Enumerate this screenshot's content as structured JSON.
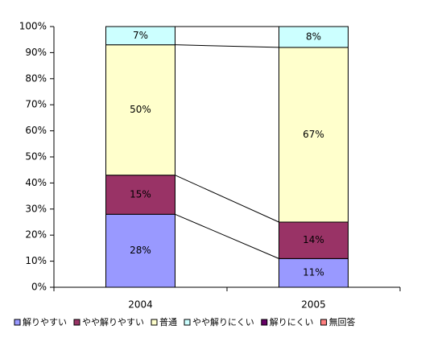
{
  "chart_data": {
    "type": "stacked-bar",
    "categories": [
      "2004",
      "2005"
    ],
    "series": [
      {
        "name": "解りやすい",
        "color": "#9999ff",
        "label_color": "#000000",
        "values": [
          28,
          11
        ],
        "value_labels": [
          "28%",
          "11%"
        ]
      },
      {
        "name": "やや解りやすい",
        "color": "#993366",
        "label_color": "#ffffff",
        "values": [
          15,
          14
        ],
        "value_labels": [
          "15%",
          "14%"
        ]
      },
      {
        "name": "普通",
        "color": "#ffffcc",
        "label_color": "#000000",
        "values": [
          50,
          67
        ],
        "value_labels": [
          "50%",
          "67%"
        ]
      },
      {
        "name": "やや解りにくい",
        "color": "#ccffff",
        "label_color": "#000000",
        "values": [
          7,
          8
        ],
        "value_labels": [
          "7%",
          "8%"
        ]
      },
      {
        "name": "解りにくい",
        "color": "#660066",
        "label_color": "#ffffff",
        "values": [
          0,
          0
        ],
        "value_labels": [
          null,
          null
        ]
      },
      {
        "name": "無回答",
        "color": "#ff8080",
        "label_color": "#000000",
        "values": [
          0,
          0
        ],
        "value_labels": [
          null,
          null
        ]
      }
    ],
    "ylim": [
      0,
      100
    ],
    "yticks": [
      {
        "value": 0,
        "label": "0%"
      },
      {
        "value": 10,
        "label": "10%"
      },
      {
        "value": 20,
        "label": "20%"
      },
      {
        "value": 30,
        "label": "30%"
      },
      {
        "value": 40,
        "label": "40%"
      },
      {
        "value": 50,
        "label": "50%"
      },
      {
        "value": 60,
        "label": "60%"
      },
      {
        "value": 70,
        "label": "70%"
      },
      {
        "value": 80,
        "label": "80%"
      },
      {
        "value": 90,
        "label": "90%"
      },
      {
        "value": 100,
        "label": "100%"
      }
    ],
    "legend": "bottom",
    "series_lines": true
  }
}
